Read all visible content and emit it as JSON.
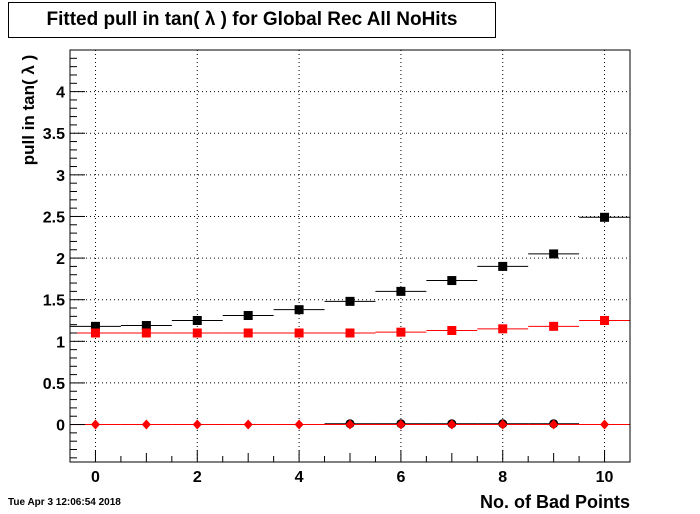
{
  "title": "Fitted pull in tan( λ ) for Global Rec All NoHits",
  "timestamp": "Tue Apr  3 12:06:54 2018",
  "chart_data": {
    "type": "scatter",
    "title": "Fitted pull in tan( λ ) for Global Rec All NoHits",
    "xlabel": "No. of Bad Points",
    "ylabel": "pull in tan( λ )",
    "xlim": [
      -0.5,
      10.5
    ],
    "ylim": [
      -0.45,
      4.5
    ],
    "xticks": [
      0,
      2,
      4,
      6,
      8,
      10
    ],
    "yticks": [
      0,
      0.5,
      1,
      1.5,
      2,
      2.5,
      3,
      3.5,
      4
    ],
    "grid": true,
    "series": [
      {
        "marker": "square",
        "color": "#000000",
        "x": [
          0,
          1,
          2,
          3,
          4,
          5,
          6,
          7,
          8,
          9,
          10
        ],
        "y": [
          1.18,
          1.19,
          1.25,
          1.31,
          1.38,
          1.48,
          1.6,
          1.73,
          1.9,
          2.05,
          2.49
        ]
      },
      {
        "marker": "square",
        "color": "#ff0000",
        "x": [
          0,
          1,
          2,
          3,
          4,
          5,
          6,
          7,
          8,
          9,
          10
        ],
        "y": [
          1.1,
          1.1,
          1.1,
          1.1,
          1.1,
          1.1,
          1.11,
          1.13,
          1.15,
          1.18,
          1.25
        ]
      },
      {
        "marker": "circle",
        "color": "#000000",
        "x": [
          5,
          6,
          7,
          8,
          9
        ],
        "y": [
          0.01,
          0.01,
          0.01,
          0.01,
          0.01
        ]
      },
      {
        "marker": "diamond",
        "color": "#ff0000",
        "x": [
          0,
          1,
          2,
          3,
          4,
          5,
          6,
          7,
          8,
          9,
          10
        ],
        "y": [
          0.0,
          0.0,
          0.0,
          0.0,
          0.0,
          0.0,
          0.0,
          0.0,
          0.0,
          0.0,
          0.0
        ]
      }
    ]
  }
}
